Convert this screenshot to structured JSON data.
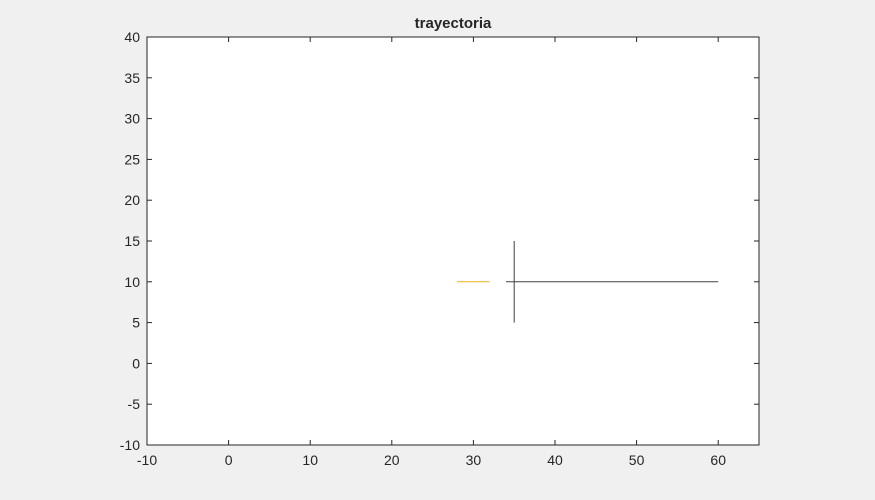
{
  "chart_data": {
    "type": "line",
    "title": "trayectoria",
    "xlabel": "",
    "ylabel": "",
    "xlim": [
      -10,
      65
    ],
    "ylim": [
      -10,
      40
    ],
    "xticks": [
      -10,
      0,
      10,
      20,
      30,
      40,
      50,
      60
    ],
    "yticks": [
      -10,
      -5,
      0,
      5,
      10,
      15,
      20,
      25,
      30,
      35,
      40
    ],
    "grid": false,
    "colors": {
      "figure_bg": "#f0f0f0",
      "axes_bg": "#ffffff",
      "axis_line": "#262626",
      "text": "#262626"
    },
    "series": [
      {
        "color": "#edb120",
        "x": [
          28,
          32
        ],
        "y": [
          10,
          10
        ]
      },
      {
        "color": "#404040",
        "x": [
          35,
          35
        ],
        "y": [
          5,
          15
        ]
      },
      {
        "color": "#404040",
        "x": [
          34,
          60
        ],
        "y": [
          10,
          10
        ]
      }
    ]
  }
}
